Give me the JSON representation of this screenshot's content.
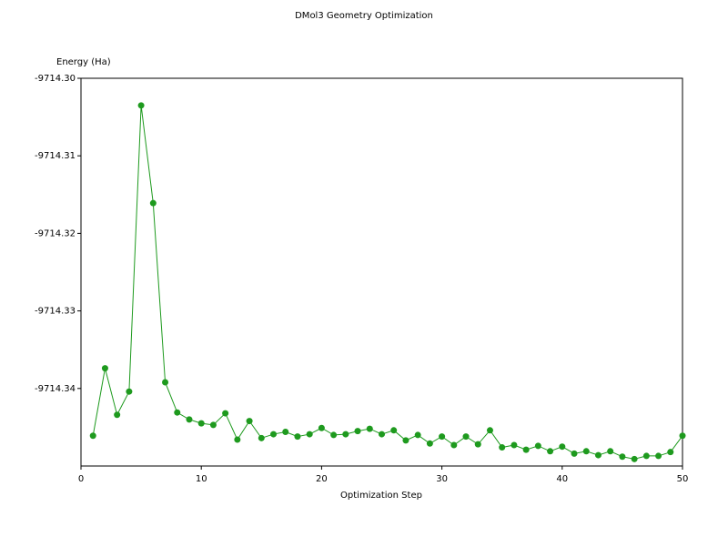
{
  "chart_data": {
    "type": "line",
    "title": "DMol3 Geometry Optimization",
    "x_label": "Optimization Step",
    "y_label": "Energy (Ha)",
    "x": [
      1,
      2,
      3,
      4,
      5,
      6,
      7,
      8,
      9,
      10,
      11,
      12,
      13,
      14,
      15,
      16,
      17,
      18,
      19,
      20,
      21,
      22,
      23,
      24,
      25,
      26,
      27,
      28,
      29,
      30,
      31,
      32,
      33,
      34,
      35,
      36,
      37,
      38,
      39,
      40,
      41,
      42,
      43,
      44,
      45,
      46,
      47,
      48,
      49,
      50
    ],
    "series": [
      {
        "color": "#1e9a1e",
        "values": [
          -9714.3461,
          -9714.3374,
          -9714.3434,
          -9714.3404,
          -9714.3035,
          -9714.3161,
          -9714.3392,
          -9714.3431,
          -9714.344,
          -9714.3445,
          -9714.3447,
          -9714.3432,
          -9714.3466,
          -9714.3442,
          -9714.3464,
          -9714.3459,
          -9714.3456,
          -9714.3462,
          -9714.3459,
          -9714.3451,
          -9714.346,
          -9714.3459,
          -9714.3455,
          -9714.3452,
          -9714.3459,
          -9714.3454,
          -9714.3467,
          -9714.346,
          -9714.3471,
          -9714.3462,
          -9714.3473,
          -9714.3462,
          -9714.3472,
          -9714.3454,
          -9714.3476,
          -9714.3473,
          -9714.3479,
          -9714.3474,
          -9714.3481,
          -9714.3475,
          -9714.3484,
          -9714.3481,
          -9714.3486,
          -9714.3481,
          -9714.3488,
          -9714.3491,
          -9714.3487,
          -9714.3487,
          -9714.3482,
          -9714.3461
        ]
      }
    ],
    "xlim": [
      0,
      50
    ],
    "xticks": [
      0,
      10,
      20,
      30,
      40,
      50
    ],
    "ylim": [
      -9714.35,
      -9714.3
    ],
    "yticks": [
      {
        "value": -9714.3,
        "label": "-9714.30"
      },
      -9714.31,
      -9714.32,
      -9714.33,
      -9714.34
    ],
    "grid": false
  }
}
